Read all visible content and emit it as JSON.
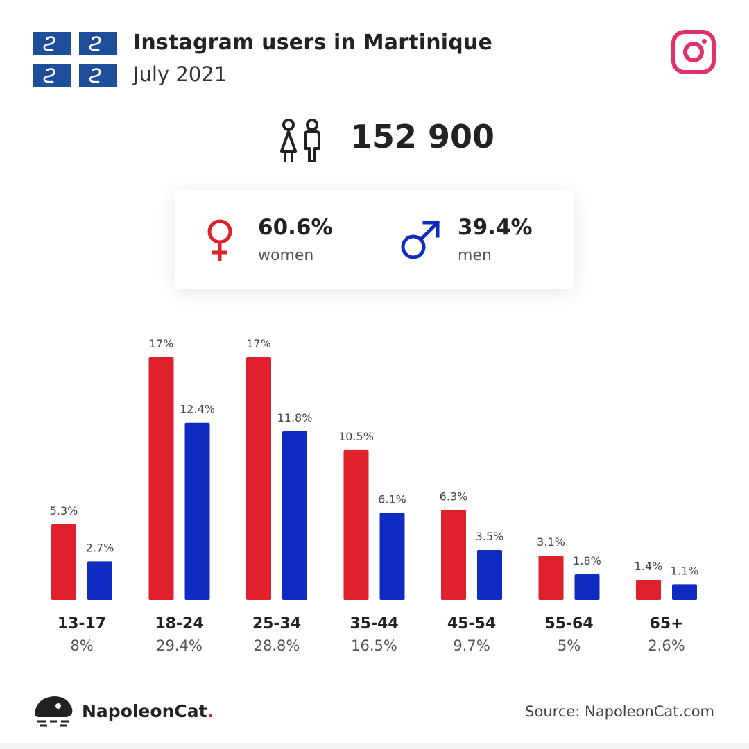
{
  "header": {
    "title": "Instagram users in Martinique",
    "subtitle": "July 2021",
    "flag_icon": "martinique-flag-icon",
    "platform_icon": "instagram-icon"
  },
  "total": {
    "value": "152 900",
    "icon": "people-icon"
  },
  "gender": {
    "women_value": "60.6%",
    "women_label": "women",
    "men_value": "39.4%",
    "men_label": "men"
  },
  "chart_data": {
    "type": "bar",
    "categories": [
      "13-17",
      "18-24",
      "25-34",
      "35-44",
      "45-54",
      "55-64",
      "65+"
    ],
    "category_totals": [
      "8%",
      "29.4%",
      "28.8%",
      "16.5%",
      "9.7%",
      "5%",
      "2.6%"
    ],
    "series": [
      {
        "values": [
          5.3,
          17,
          17,
          10.5,
          6.3,
          3.1,
          1.4
        ],
        "labels": [
          "5.3%",
          "17%",
          "17%",
          "10.5%",
          "6.3%",
          "3.1%",
          "1.4%"
        ],
        "color": "#e0202a"
      },
      {
        "values": [
          2.7,
          12.4,
          11.8,
          6.1,
          3.5,
          1.8,
          1.1
        ],
        "labels": [
          "2.7%",
          "12.4%",
          "11.8%",
          "6.1%",
          "3.5%",
          "1.8%",
          "1.1%"
        ],
        "color": "#102bc2"
      }
    ],
    "ylim": [
      0,
      17
    ],
    "grid": false
  },
  "colors": {
    "women": "#e0202a",
    "men": "#102bc2",
    "instagram": "#e1306c",
    "flag_blue": "#1f4e9a"
  },
  "footer": {
    "brand": "NapoleonCat",
    "brand_dot": ".",
    "source": "Source: NapoleonCat.com",
    "logo_icon": "napoleoncat-logo-icon"
  }
}
